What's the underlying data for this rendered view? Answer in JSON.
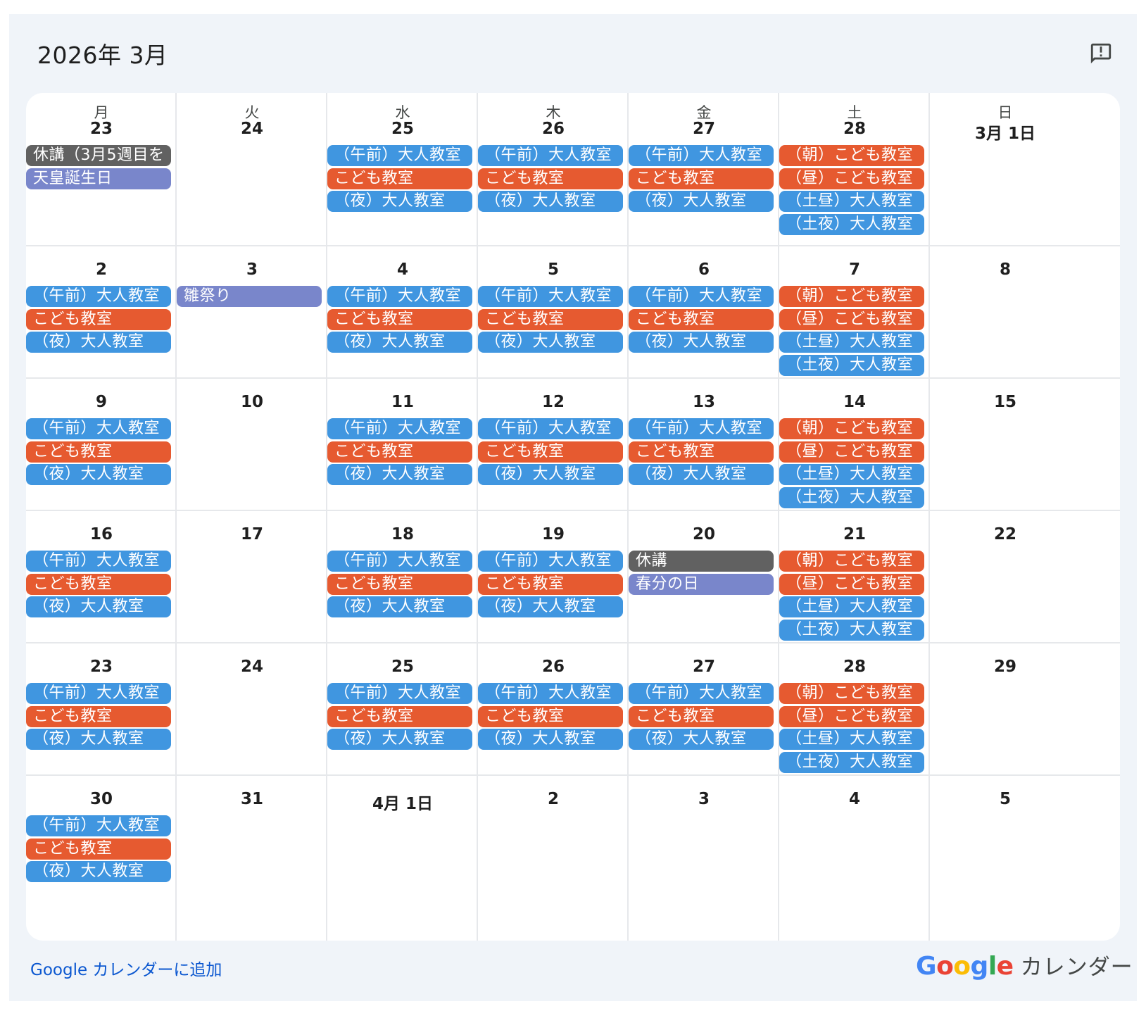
{
  "header": {
    "title": "2026年 3月",
    "feedback_icon": "feedback-icon"
  },
  "colors": {
    "blue": "#4096e0",
    "orange": "#e65a30",
    "gray": "#616161",
    "purple": "#7986cb",
    "google_blue": "#4285F4",
    "google_red": "#EA4335",
    "google_yellow": "#FBBC05",
    "google_green": "#34A853"
  },
  "weekdays": [
    "月",
    "火",
    "水",
    "木",
    "金",
    "土",
    "日"
  ],
  "weeks": [
    {
      "days": [
        {
          "label": "23",
          "events": [
            {
              "title": "休講（3月5週目を",
              "color": "gray"
            },
            {
              "title": "天皇誕生日",
              "color": "purple"
            }
          ]
        },
        {
          "label": "24",
          "events": []
        },
        {
          "label": "25",
          "events": [
            {
              "title": "（午前）大人教室",
              "color": "blue"
            },
            {
              "title": "こども教室",
              "color": "orange"
            },
            {
              "title": "（夜）大人教室",
              "color": "blue"
            }
          ]
        },
        {
          "label": "26",
          "events": [
            {
              "title": "（午前）大人教室",
              "color": "blue"
            },
            {
              "title": "こども教室",
              "color": "orange"
            },
            {
              "title": "（夜）大人教室",
              "color": "blue"
            }
          ]
        },
        {
          "label": "27",
          "events": [
            {
              "title": "（午前）大人教室",
              "color": "blue"
            },
            {
              "title": "こども教室",
              "color": "orange"
            },
            {
              "title": "（夜）大人教室",
              "color": "blue"
            }
          ]
        },
        {
          "label": "28",
          "events": [
            {
              "title": "（朝）こども教室",
              "color": "orange"
            },
            {
              "title": "（昼）こども教室",
              "color": "orange"
            },
            {
              "title": "（土昼）大人教室",
              "color": "blue"
            },
            {
              "title": "（土夜）大人教室",
              "color": "blue"
            }
          ]
        },
        {
          "label": "3月 1日",
          "events": []
        }
      ]
    },
    {
      "days": [
        {
          "label": "2",
          "events": [
            {
              "title": "（午前）大人教室",
              "color": "blue"
            },
            {
              "title": "こども教室",
              "color": "orange"
            },
            {
              "title": "（夜）大人教室",
              "color": "blue"
            }
          ]
        },
        {
          "label": "3",
          "events": [
            {
              "title": "雛祭り",
              "color": "purple"
            }
          ]
        },
        {
          "label": "4",
          "events": [
            {
              "title": "（午前）大人教室",
              "color": "blue"
            },
            {
              "title": "こども教室",
              "color": "orange"
            },
            {
              "title": "（夜）大人教室",
              "color": "blue"
            }
          ]
        },
        {
          "label": "5",
          "events": [
            {
              "title": "（午前）大人教室",
              "color": "blue"
            },
            {
              "title": "こども教室",
              "color": "orange"
            },
            {
              "title": "（夜）大人教室",
              "color": "blue"
            }
          ]
        },
        {
          "label": "6",
          "events": [
            {
              "title": "（午前）大人教室",
              "color": "blue"
            },
            {
              "title": "こども教室",
              "color": "orange"
            },
            {
              "title": "（夜）大人教室",
              "color": "blue"
            }
          ]
        },
        {
          "label": "7",
          "events": [
            {
              "title": "（朝）こども教室",
              "color": "orange"
            },
            {
              "title": "（昼）こども教室",
              "color": "orange"
            },
            {
              "title": "（土昼）大人教室",
              "color": "blue"
            },
            {
              "title": "（土夜）大人教室",
              "color": "blue"
            }
          ]
        },
        {
          "label": "8",
          "events": []
        }
      ]
    },
    {
      "days": [
        {
          "label": "9",
          "events": [
            {
              "title": "（午前）大人教室",
              "color": "blue"
            },
            {
              "title": "こども教室",
              "color": "orange"
            },
            {
              "title": "（夜）大人教室",
              "color": "blue"
            }
          ]
        },
        {
          "label": "10",
          "events": []
        },
        {
          "label": "11",
          "events": [
            {
              "title": "（午前）大人教室",
              "color": "blue"
            },
            {
              "title": "こども教室",
              "color": "orange"
            },
            {
              "title": "（夜）大人教室",
              "color": "blue"
            }
          ]
        },
        {
          "label": "12",
          "events": [
            {
              "title": "（午前）大人教室",
              "color": "blue"
            },
            {
              "title": "こども教室",
              "color": "orange"
            },
            {
              "title": "（夜）大人教室",
              "color": "blue"
            }
          ]
        },
        {
          "label": "13",
          "events": [
            {
              "title": "（午前）大人教室",
              "color": "blue"
            },
            {
              "title": "こども教室",
              "color": "orange"
            },
            {
              "title": "（夜）大人教室",
              "color": "blue"
            }
          ]
        },
        {
          "label": "14",
          "events": [
            {
              "title": "（朝）こども教室",
              "color": "orange"
            },
            {
              "title": "（昼）こども教室",
              "color": "orange"
            },
            {
              "title": "（土昼）大人教室",
              "color": "blue"
            },
            {
              "title": "（土夜）大人教室",
              "color": "blue"
            }
          ]
        },
        {
          "label": "15",
          "events": []
        }
      ]
    },
    {
      "days": [
        {
          "label": "16",
          "events": [
            {
              "title": "（午前）大人教室",
              "color": "blue"
            },
            {
              "title": "こども教室",
              "color": "orange"
            },
            {
              "title": "（夜）大人教室",
              "color": "blue"
            }
          ]
        },
        {
          "label": "17",
          "events": []
        },
        {
          "label": "18",
          "events": [
            {
              "title": "（午前）大人教室",
              "color": "blue"
            },
            {
              "title": "こども教室",
              "color": "orange"
            },
            {
              "title": "（夜）大人教室",
              "color": "blue"
            }
          ]
        },
        {
          "label": "19",
          "events": [
            {
              "title": "（午前）大人教室",
              "color": "blue"
            },
            {
              "title": "こども教室",
              "color": "orange"
            },
            {
              "title": "（夜）大人教室",
              "color": "blue"
            }
          ]
        },
        {
          "label": "20",
          "events": [
            {
              "title": "休講",
              "color": "gray"
            },
            {
              "title": "春分の日",
              "color": "purple"
            }
          ]
        },
        {
          "label": "21",
          "events": [
            {
              "title": "（朝）こども教室",
              "color": "orange"
            },
            {
              "title": "（昼）こども教室",
              "color": "orange"
            },
            {
              "title": "（土昼）大人教室",
              "color": "blue"
            },
            {
              "title": "（土夜）大人教室",
              "color": "blue"
            }
          ]
        },
        {
          "label": "22",
          "events": []
        }
      ]
    },
    {
      "days": [
        {
          "label": "23",
          "events": [
            {
              "title": "（午前）大人教室",
              "color": "blue"
            },
            {
              "title": "こども教室",
              "color": "orange"
            },
            {
              "title": "（夜）大人教室",
              "color": "blue"
            }
          ]
        },
        {
          "label": "24",
          "events": []
        },
        {
          "label": "25",
          "events": [
            {
              "title": "（午前）大人教室",
              "color": "blue"
            },
            {
              "title": "こども教室",
              "color": "orange"
            },
            {
              "title": "（夜）大人教室",
              "color": "blue"
            }
          ]
        },
        {
          "label": "26",
          "events": [
            {
              "title": "（午前）大人教室",
              "color": "blue"
            },
            {
              "title": "こども教室",
              "color": "orange"
            },
            {
              "title": "（夜）大人教室",
              "color": "blue"
            }
          ]
        },
        {
          "label": "27",
          "events": [
            {
              "title": "（午前）大人教室",
              "color": "blue"
            },
            {
              "title": "こども教室",
              "color": "orange"
            },
            {
              "title": "（夜）大人教室",
              "color": "blue"
            }
          ]
        },
        {
          "label": "28",
          "events": [
            {
              "title": "（朝）こども教室",
              "color": "orange"
            },
            {
              "title": "（昼）こども教室",
              "color": "orange"
            },
            {
              "title": "（土昼）大人教室",
              "color": "blue"
            },
            {
              "title": "（土夜）大人教室",
              "color": "blue"
            }
          ]
        },
        {
          "label": "29",
          "events": []
        }
      ]
    },
    {
      "days": [
        {
          "label": "30",
          "events": [
            {
              "title": "（午前）大人教室",
              "color": "blue"
            },
            {
              "title": "こども教室",
              "color": "orange"
            },
            {
              "title": "（夜）大人教室",
              "color": "blue"
            }
          ]
        },
        {
          "label": "31",
          "events": []
        },
        {
          "label": "4月 1日",
          "events": []
        },
        {
          "label": "2",
          "events": []
        },
        {
          "label": "3",
          "events": []
        },
        {
          "label": "4",
          "events": []
        },
        {
          "label": "5",
          "events": []
        }
      ]
    }
  ],
  "footer": {
    "add_link": "Google カレンダーに追加",
    "brand_google": "Google",
    "brand_text": "カレンダー"
  }
}
